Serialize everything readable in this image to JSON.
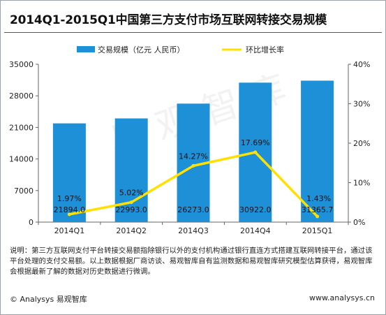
{
  "title": "2014Q1-2015Q1中国第三方支付市场互联网转接交易规模",
  "watermark": "易观智库",
  "colors": {
    "bar": "#1e90d8",
    "line": "#ffe000",
    "axis": "#666666",
    "grid": "#c8c8c8"
  },
  "chart_data": {
    "type": "bar",
    "categories": [
      "2014Q1",
      "2014Q2",
      "2014Q3",
      "2014Q4",
      "2015Q1"
    ],
    "series": [
      {
        "name": "交易规模（亿元 人民币）",
        "type": "bar",
        "axis": "left",
        "values": [
          21894.0,
          22993.0,
          26273.0,
          30922.0,
          31365.7
        ],
        "labels": [
          "21894.0",
          "22993.0",
          "26273.0",
          "30922.0",
          "31365.7"
        ]
      },
      {
        "name": "环比增长率",
        "type": "line",
        "axis": "right",
        "values": [
          1.97,
          5.02,
          14.27,
          17.69,
          1.43
        ],
        "labels": [
          "1.97%",
          "5.02%",
          "14.27%",
          "17.69%",
          "1.43%"
        ]
      }
    ],
    "y_left": {
      "min": 0,
      "max": 35000,
      "ticks": [
        0,
        7000,
        14000,
        21000,
        28000,
        35000
      ]
    },
    "y_right": {
      "min": 0,
      "max": 40,
      "ticks": [
        "0%",
        "10%",
        "20%",
        "30%",
        "40%"
      ]
    },
    "legend_position": "top",
    "grid": false
  },
  "note": "说明：第三方互联网支付平台转接交易额指除银行以外的支付机构通过银行直连方式搭建互联网转接平台，通过该平台处理的支付交易额。以上数据根据厂商访谈、易观智库自有监测数据和易观智库研究模型估算获得，易观智库会根据最新了解的数据对历史数据进行微调。",
  "footer": {
    "left": "© Analysys 易观智库",
    "right": "www.analysys.cn"
  }
}
